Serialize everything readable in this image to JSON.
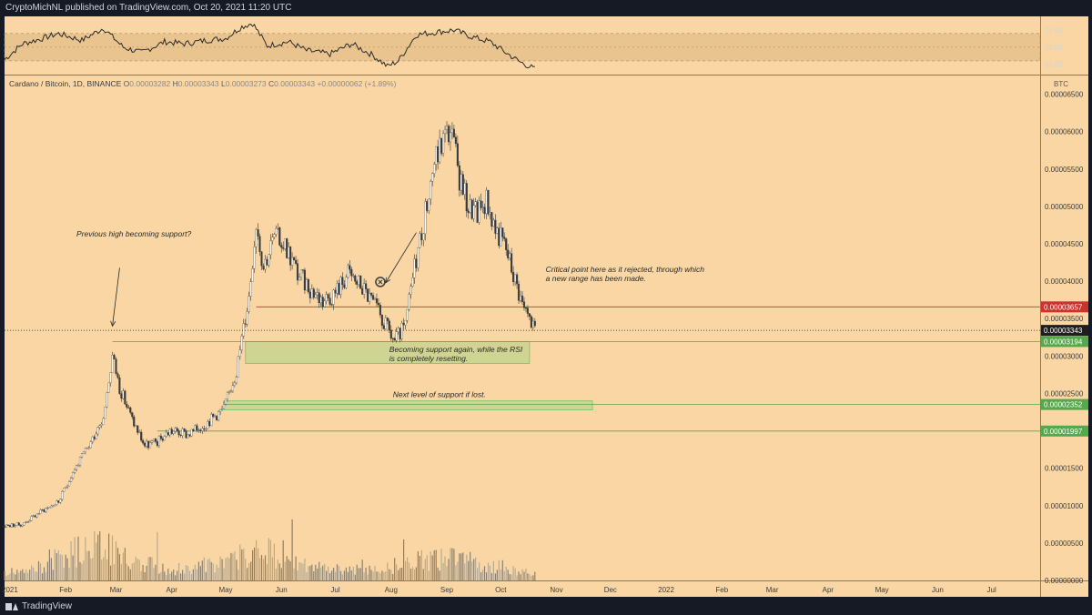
{
  "header": {
    "publisher_line": "CryptoMichNL published on TradingView.com, Oct 20, 2021 11:20 UTC"
  },
  "footer": {
    "brand": "TradingView"
  },
  "colors": {
    "background": "#f9d6a3",
    "frame": "#161a25",
    "candle_up": "#ffffff",
    "candle_down": "#3a3a3a",
    "rsi_line": "#2a2a2a",
    "support_zone": "#c9d48f",
    "support_line": "#7cbf68",
    "resistance_line": "#c9342e",
    "label_red": "#b22222",
    "label_green": "#55a84b",
    "label_current": "#1e1e1e"
  },
  "chart_data": [
    {
      "type": "candlestick",
      "title": "Cardano / Bitcoin, 1D, BINANCE",
      "ohlc_readout": {
        "o_label": "O",
        "o": "0.00003282",
        "h_label": "H",
        "h": "0.00003343",
        "l_label": "L",
        "l": "0.00003273",
        "c_label": "C",
        "c": "0.00003343",
        "change": "+0.00000062 (+1.89%)"
      },
      "currency": "BTC",
      "x_tick_labels": [
        "2021",
        "Feb",
        "Mar",
        "Apr",
        "May",
        "Jun",
        "Jul",
        "Aug",
        "Sep",
        "Oct",
        "Nov",
        "Dec",
        "2022",
        "Feb",
        "Mar",
        "Apr",
        "May",
        "Jun",
        "Jul"
      ],
      "x_tick_dates": [
        "2021-01-01",
        "2021-02-01",
        "2021-03-01",
        "2021-04-01",
        "2021-05-01",
        "2021-06-01",
        "2021-07-01",
        "2021-08-01",
        "2021-09-01",
        "2021-10-01",
        "2021-11-01",
        "2021-12-01",
        "2022-01-01",
        "2022-02-01",
        "2022-03-01",
        "2022-04-01",
        "2022-05-01",
        "2022-06-01",
        "2022-07-01"
      ],
      "y_tick_labels": [
        "0.00006500",
        "0.00006000",
        "0.00005500",
        "0.00005000",
        "0.00004500",
        "0.00004000",
        "0.00003500",
        "0.00003000",
        "0.00002500",
        "0.00002000",
        "0.00001500",
        "0.00001000",
        "0.00000500",
        "0.00000000"
      ],
      "y_tick_values": [
        6.5e-05,
        6e-05,
        5.5e-05,
        5e-05,
        4.5e-05,
        4e-05,
        3.5e-05,
        3e-05,
        2.5e-05,
        2e-05,
        1.5e-05,
        1e-05,
        5e-06,
        0
      ],
      "ylim": [
        0,
        6.75e-05
      ],
      "xlim": [
        "2020-12-29",
        "2022-07-28"
      ],
      "close_path": [
        [
          "2020-12-29",
          7.3e-06
        ],
        [
          "2021-01-08",
          7.5e-06
        ],
        [
          "2021-01-18",
          9.2e-06
        ],
        [
          "2021-01-28",
          1.05e-05
        ],
        [
          "2021-02-05",
          1.45e-05
        ],
        [
          "2021-02-14",
          1.8e-05
        ],
        [
          "2021-02-22",
          2.2e-05
        ],
        [
          "2021-02-27",
          3e-05
        ],
        [
          "2021-03-03",
          2.58e-05
        ],
        [
          "2021-03-10",
          2.15e-05
        ],
        [
          "2021-03-17",
          1.8e-05
        ],
        [
          "2021-03-24",
          1.85e-05
        ],
        [
          "2021-03-31",
          2e-05
        ],
        [
          "2021-04-10",
          1.95e-05
        ],
        [
          "2021-04-20",
          2.1e-05
        ],
        [
          "2021-04-30",
          2.3e-05
        ],
        [
          "2021-05-07",
          2.8e-05
        ],
        [
          "2021-05-14",
          3.8e-05
        ],
        [
          "2021-05-18",
          4.8e-05
        ],
        [
          "2021-05-22",
          4.2e-05
        ],
        [
          "2021-05-28",
          4.6e-05
        ],
        [
          "2021-06-03",
          4.5e-05
        ],
        [
          "2021-06-10",
          4.1e-05
        ],
        [
          "2021-06-17",
          3.9e-05
        ],
        [
          "2021-06-24",
          3.75e-05
        ],
        [
          "2021-07-01",
          3.85e-05
        ],
        [
          "2021-07-08",
          4.1e-05
        ],
        [
          "2021-07-15",
          3.95e-05
        ],
        [
          "2021-07-22",
          3.7e-05
        ],
        [
          "2021-07-29",
          3.4e-05
        ],
        [
          "2021-08-03",
          3.2e-05
        ],
        [
          "2021-08-09",
          3.4e-05
        ],
        [
          "2021-08-14",
          4.2e-05
        ],
        [
          "2021-08-19",
          4.8e-05
        ],
        [
          "2021-08-25",
          5.6e-05
        ],
        [
          "2021-08-30",
          5.9e-05
        ],
        [
          "2021-09-03",
          6.05e-05
        ],
        [
          "2021-09-08",
          5.4e-05
        ],
        [
          "2021-09-13",
          5e-05
        ],
        [
          "2021-09-18",
          4.9e-05
        ],
        [
          "2021-09-23",
          5.1e-05
        ],
        [
          "2021-09-28",
          4.7e-05
        ],
        [
          "2021-10-03",
          4.5e-05
        ],
        [
          "2021-10-08",
          4.1e-05
        ],
        [
          "2021-10-13",
          3.7e-05
        ],
        [
          "2021-10-20",
          3.34e-05
        ]
      ],
      "volume_path": [
        [
          "2021-01-10",
          0.15
        ],
        [
          "2021-02-01",
          0.45
        ],
        [
          "2021-02-20",
          0.7
        ],
        [
          "2021-03-05",
          0.4
        ],
        [
          "2021-04-01",
          0.2
        ],
        [
          "2021-05-01",
          0.3
        ],
        [
          "2021-05-20",
          0.6
        ],
        [
          "2021-06-15",
          0.25
        ],
        [
          "2021-07-20",
          0.18
        ],
        [
          "2021-08-15",
          0.35
        ],
        [
          "2021-09-05",
          0.4
        ],
        [
          "2021-10-01",
          0.25
        ],
        [
          "2021-10-20",
          0.1
        ]
      ],
      "levels": [
        {
          "value": 3.657e-05,
          "label": "0.00003657",
          "color": "#c9342e",
          "start": "2021-05-18"
        },
        {
          "value": 3.343e-05,
          "label": "0.00003343",
          "color": "#1e1e1e",
          "start": "2020-12-29",
          "dotted": true
        },
        {
          "value": 3.194e-05,
          "label": "0.00003194",
          "color": "#55a84b",
          "start": "2021-02-27"
        },
        {
          "value": 2.352e-05,
          "label": "0.00002352",
          "color": "#55a84b",
          "start": "2021-04-30"
        },
        {
          "value": 1.997e-05,
          "label": "0.00001997",
          "color": "#55a84b",
          "start": "2021-03-24"
        }
      ],
      "zones": [
        {
          "start": "2021-05-12",
          "end": "2021-10-17",
          "top": 3.194e-05,
          "bottom": 2.9e-05
        },
        {
          "start": "2021-04-30",
          "end": "2021-11-21",
          "top": 2.4e-05,
          "bottom": 2.28e-05
        }
      ],
      "annotations": [
        {
          "id": "prev-high",
          "text": "Previous high becoming support?",
          "date": "2021-02-07",
          "value": 4.6e-05
        },
        {
          "id": "critical",
          "lines": [
            "Critical point here as it rejected, through which",
            "a new range has been made."
          ],
          "date": "2021-10-26",
          "value": 4.12e-05
        },
        {
          "id": "becoming",
          "lines": [
            "Becoming support again, while the RSI",
            "is completely resetting."
          ],
          "date": "2021-07-31",
          "value": 3.05e-05
        },
        {
          "id": "next-level",
          "text": "Next level of support if lost.",
          "date": "2021-08-02",
          "value": 2.45e-05
        }
      ],
      "arrows": [
        {
          "from": [
            "2021-03-03",
            4.18e-05
          ],
          "to": [
            "2021-02-27",
            3.4e-05
          ]
        },
        {
          "from": [
            "2021-08-15",
            4.65e-05
          ],
          "to": [
            "2021-07-29",
            3.98e-05
          ]
        }
      ],
      "marker": {
        "date": "2021-07-26",
        "value": 3.99e-05
      }
    },
    {
      "type": "line",
      "name": "RSI",
      "y_tick_labels": [
        "75.00",
        "50.00",
        "25.00"
      ],
      "y_tick_values": [
        75,
        50,
        25
      ],
      "ylim": [
        10,
        95
      ],
      "band": [
        30,
        70
      ],
      "values": [
        [
          "2020-12-29",
          32
        ],
        [
          "2021-01-08",
          55
        ],
        [
          "2021-01-18",
          62
        ],
        [
          "2021-01-28",
          70
        ],
        [
          "2021-02-10",
          60
        ],
        [
          "2021-02-22",
          78
        ],
        [
          "2021-03-05",
          50
        ],
        [
          "2021-03-15",
          42
        ],
        [
          "2021-03-28",
          58
        ],
        [
          "2021-04-08",
          55
        ],
        [
          "2021-04-20",
          60
        ],
        [
          "2021-05-01",
          63
        ],
        [
          "2021-05-10",
          80
        ],
        [
          "2021-05-16",
          85
        ],
        [
          "2021-05-24",
          52
        ],
        [
          "2021-06-05",
          58
        ],
        [
          "2021-06-15",
          45
        ],
        [
          "2021-06-28",
          40
        ],
        [
          "2021-07-10",
          55
        ],
        [
          "2021-07-22",
          38
        ],
        [
          "2021-07-30",
          22
        ],
        [
          "2021-08-05",
          30
        ],
        [
          "2021-08-15",
          68
        ],
        [
          "2021-08-26",
          72
        ],
        [
          "2021-09-05",
          75
        ],
        [
          "2021-09-15",
          65
        ],
        [
          "2021-09-25",
          58
        ],
        [
          "2021-10-05",
          40
        ],
        [
          "2021-10-12",
          28
        ],
        [
          "2021-10-20",
          18
        ]
      ]
    }
  ]
}
